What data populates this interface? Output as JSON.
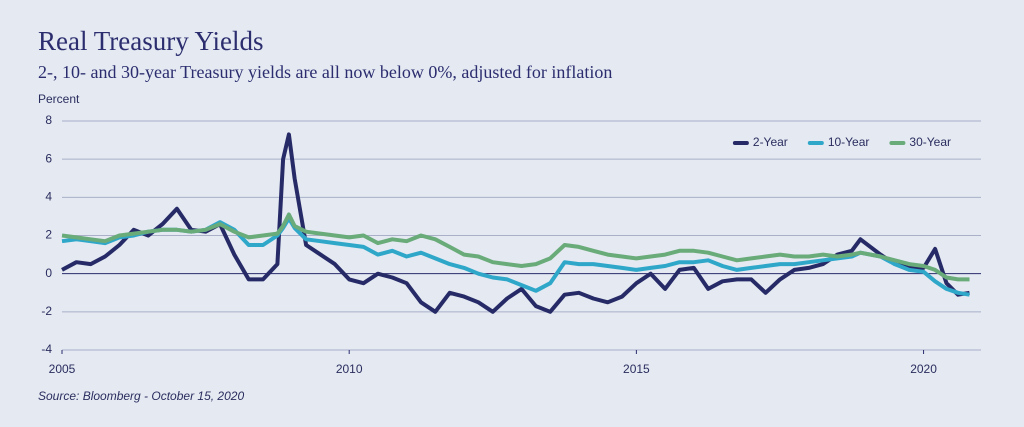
{
  "chart_data": {
    "type": "line",
    "title": "Real Treasury Yields",
    "subtitle": "2-, 10- and 30-year Treasury yields are all now below 0%, adjusted for inflation",
    "y_label": "Percent",
    "source": "Source: Bloomberg - October 15, 2020",
    "x": [
      2005,
      2005.25,
      2005.5,
      2005.75,
      2006,
      2006.25,
      2006.5,
      2006.75,
      2007,
      2007.25,
      2007.5,
      2007.75,
      2008,
      2008.25,
      2008.5,
      2008.75,
      2008.85,
      2008.95,
      2009.05,
      2009.25,
      2009.5,
      2009.75,
      2010,
      2010.25,
      2010.5,
      2010.75,
      2011,
      2011.25,
      2011.5,
      2011.75,
      2012,
      2012.25,
      2012.5,
      2012.75,
      2013,
      2013.25,
      2013.5,
      2013.75,
      2014,
      2014.25,
      2014.5,
      2014.75,
      2015,
      2015.25,
      2015.5,
      2015.75,
      2016,
      2016.25,
      2016.5,
      2016.75,
      2017,
      2017.25,
      2017.5,
      2017.75,
      2018,
      2018.25,
      2018.5,
      2018.75,
      2018.9,
      2019.25,
      2019.5,
      2019.75,
      2020,
      2020.2,
      2020.4,
      2020.6,
      2020.8
    ],
    "series": [
      {
        "name": "2-Year",
        "color": "#262a66",
        "values": [
          0.2,
          0.6,
          0.5,
          0.9,
          1.5,
          2.3,
          2.0,
          2.6,
          3.4,
          2.3,
          2.2,
          2.6,
          1.0,
          -0.3,
          -0.3,
          0.5,
          6.0,
          7.3,
          5.0,
          1.5,
          1.0,
          0.5,
          -0.3,
          -0.5,
          0.0,
          -0.2,
          -0.5,
          -1.5,
          -2.0,
          -1.0,
          -1.2,
          -1.5,
          -2.0,
          -1.3,
          -0.8,
          -1.7,
          -2.0,
          -1.1,
          -1.0,
          -1.3,
          -1.5,
          -1.2,
          -0.5,
          0.0,
          -0.8,
          0.2,
          0.3,
          -0.8,
          -0.4,
          -0.3,
          -0.3,
          -1.0,
          -0.3,
          0.2,
          0.3,
          0.5,
          1.0,
          1.2,
          1.8,
          1.0,
          0.5,
          0.3,
          0.3,
          1.3,
          -0.5,
          -1.1,
          -1.0
        ]
      },
      {
        "name": "10-Year",
        "color": "#2fa7c9",
        "values": [
          1.7,
          1.8,
          1.7,
          1.6,
          1.9,
          2.0,
          2.2,
          2.3,
          2.3,
          2.2,
          2.3,
          2.7,
          2.3,
          1.5,
          1.5,
          2.0,
          2.4,
          2.9,
          2.4,
          1.8,
          1.7,
          1.6,
          1.5,
          1.4,
          1.0,
          1.2,
          0.9,
          1.1,
          0.8,
          0.5,
          0.3,
          0.0,
          -0.2,
          -0.3,
          -0.6,
          -0.9,
          -0.5,
          0.6,
          0.5,
          0.5,
          0.4,
          0.3,
          0.2,
          0.3,
          0.4,
          0.6,
          0.6,
          0.7,
          0.4,
          0.2,
          0.3,
          0.4,
          0.5,
          0.5,
          0.6,
          0.7,
          0.8,
          0.9,
          1.1,
          0.9,
          0.5,
          0.2,
          0.1,
          -0.4,
          -0.8,
          -1.0,
          -1.1
        ]
      },
      {
        "name": "30-Year",
        "color": "#6aab7a",
        "values": [
          2.0,
          1.9,
          1.8,
          1.7,
          2.0,
          2.1,
          2.2,
          2.3,
          2.3,
          2.2,
          2.3,
          2.6,
          2.2,
          1.9,
          2.0,
          2.1,
          2.5,
          3.1,
          2.5,
          2.2,
          2.1,
          2.0,
          1.9,
          2.0,
          1.6,
          1.8,
          1.7,
          2.0,
          1.8,
          1.4,
          1.0,
          0.9,
          0.6,
          0.5,
          0.4,
          0.5,
          0.8,
          1.5,
          1.4,
          1.2,
          1.0,
          0.9,
          0.8,
          0.9,
          1.0,
          1.2,
          1.2,
          1.1,
          0.9,
          0.7,
          0.8,
          0.9,
          1.0,
          0.9,
          0.9,
          1.0,
          0.9,
          1.0,
          1.1,
          0.9,
          0.7,
          0.5,
          0.4,
          0.2,
          -0.2,
          -0.3,
          -0.3
        ]
      }
    ],
    "xlim": [
      2005,
      2021
    ],
    "xticks": [
      2005,
      2010,
      2015,
      2020
    ],
    "ylim": [
      -4,
      8
    ],
    "yticks": [
      -4,
      -2,
      0,
      2,
      4,
      6,
      8
    ],
    "grid": true,
    "legend": "upper right"
  }
}
